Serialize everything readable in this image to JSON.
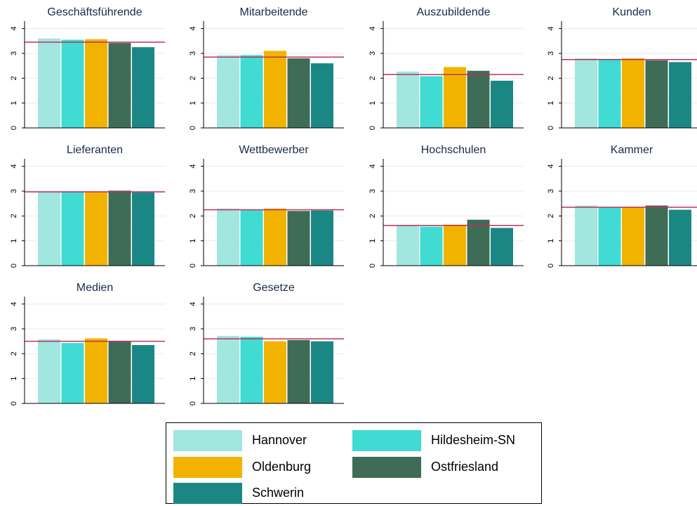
{
  "chart_data": {
    "type": "bar",
    "categories": [
      "Hannover",
      "Hildesheim-SN",
      "Oldenburg",
      "Ostfriesland",
      "Schwerin"
    ],
    "colors": [
      "#a2e6e0",
      "#40dcd3",
      "#f2b300",
      "#3f6c57",
      "#1b8785"
    ],
    "reference_line_color": "#c0305a",
    "ylim": [
      0,
      4.3
    ],
    "yticks": [
      "0",
      "1",
      "2",
      "3",
      "4"
    ],
    "grid": true,
    "legend_position": "bottom",
    "panels": [
      {
        "title": "Geschäftsführende",
        "values": [
          3.6,
          3.55,
          3.57,
          3.42,
          3.25
        ],
        "reference": 3.45
      },
      {
        "title": "Mitarbeitende",
        "values": [
          2.93,
          2.93,
          3.1,
          2.8,
          2.6
        ],
        "reference": 2.85
      },
      {
        "title": "Auszubildende",
        "values": [
          2.27,
          2.08,
          2.45,
          2.3,
          1.9
        ],
        "reference": 2.15
      },
      {
        "title": "Kunden",
        "values": [
          2.8,
          2.78,
          2.8,
          2.72,
          2.65
        ],
        "reference": 2.75
      },
      {
        "title": "Lieferanten",
        "values": [
          2.97,
          2.97,
          2.98,
          3.02,
          2.95
        ],
        "reference": 2.97
      },
      {
        "title": "Wettbewerber",
        "values": [
          2.3,
          2.25,
          2.3,
          2.2,
          2.22
        ],
        "reference": 2.25
      },
      {
        "title": "Hochschulen",
        "values": [
          1.6,
          1.57,
          1.65,
          1.85,
          1.52
        ],
        "reference": 1.62
      },
      {
        "title": "Kammer",
        "values": [
          2.42,
          2.35,
          2.37,
          2.42,
          2.25
        ],
        "reference": 2.35
      },
      {
        "title": "Medien",
        "values": [
          2.58,
          2.43,
          2.62,
          2.5,
          2.35
        ],
        "reference": 2.5
      },
      {
        "title": "Gesetze",
        "values": [
          2.72,
          2.68,
          2.5,
          2.55,
          2.5
        ],
        "reference": 2.6
      }
    ]
  }
}
